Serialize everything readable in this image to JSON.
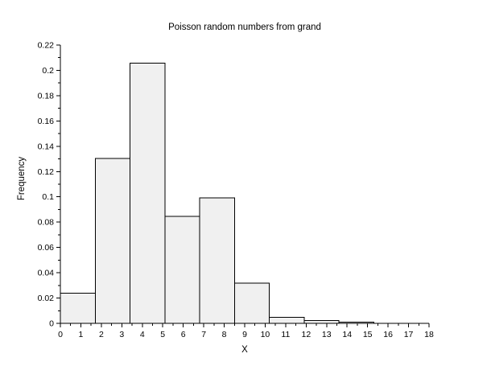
{
  "figure": {
    "background": "#ffffff"
  },
  "chart_data": {
    "type": "bar",
    "subtype": "histogram",
    "title": "Poisson random numbers from grand",
    "xlabel": "X",
    "ylabel": "Frequency",
    "xlim": [
      0,
      18
    ],
    "ylim": [
      0,
      0.22
    ],
    "x_tick_labels": [
      "0",
      "1",
      "2",
      "3",
      "4",
      "5",
      "6",
      "7",
      "8",
      "9",
      "10",
      "11",
      "12",
      "13",
      "14",
      "15",
      "16",
      "17",
      "18"
    ],
    "y_tick_labels": [
      "0",
      "0.02",
      "0.04",
      "0.06",
      "0.08",
      "0.1",
      "0.12",
      "0.14",
      "0.16",
      "0.18",
      "0.2",
      "0.22"
    ],
    "x_minor_step": 0.5,
    "y_minor_step": 0.01,
    "bin_edges": [
      0,
      1.7,
      3.4,
      5.1,
      6.8,
      8.5,
      10.2,
      11.9,
      13.6,
      15.3,
      17
    ],
    "values": [
      0.0237,
      0.1303,
      0.2057,
      0.0846,
      0.0993,
      0.0317,
      0.0047,
      0.0023,
      0.0008,
      0.0001
    ],
    "grid": false,
    "legend": false,
    "bar_fill": "#f0f0f0",
    "bar_stroke": "#000000",
    "axis_color": "#000000",
    "text_color": "#000000"
  }
}
